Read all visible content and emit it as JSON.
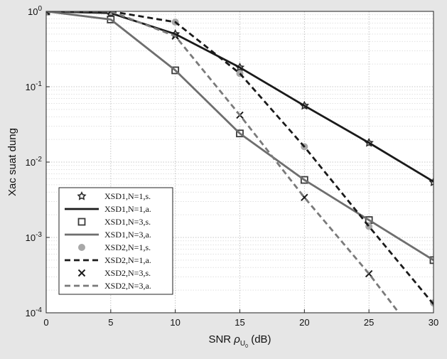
{
  "chart_data": {
    "type": "line",
    "title": "",
    "xlabel": "SNR ρU0 (dB)",
    "xlabel_parts": {
      "prefix": "SNR ",
      "rho": "ρ",
      "sub": "U",
      "subsub": "0",
      "suffix": " (dB)"
    },
    "ylabel": "Xac suat dung",
    "x_scale": "linear",
    "y_scale": "log",
    "xlim": [
      0,
      30
    ],
    "ylim": [
      0.0001,
      1
    ],
    "grid": true,
    "legend_position": "bottom-left",
    "x_ticks": [
      "0",
      "5",
      "10",
      "15",
      "20",
      "25",
      "30"
    ],
    "y_ticks": [
      {
        "value": 1,
        "base": "10",
        "exp": "0"
      },
      {
        "value": 0.1,
        "base": "10",
        "exp": "-1"
      },
      {
        "value": 0.01,
        "base": "10",
        "exp": "-2"
      },
      {
        "value": 0.001,
        "base": "10",
        "exp": "-3"
      },
      {
        "value": 0.0001,
        "base": "10",
        "exp": "-4"
      }
    ],
    "x": [
      0,
      5,
      10,
      15,
      20,
      25,
      30
    ],
    "series": [
      {
        "name": "XSD1,N=1,s.",
        "kind": "marker",
        "marker": "star",
        "color": "#2b2b2b",
        "values": [
          1.0,
          0.95,
          0.5,
          0.18,
          0.056,
          0.018,
          0.0054
        ]
      },
      {
        "name": "XSD1,N=1,a.",
        "kind": "line",
        "dash": "solid",
        "color": "#1a1a1a",
        "values": [
          1.0,
          0.95,
          0.5,
          0.18,
          0.056,
          0.018,
          0.0055
        ]
      },
      {
        "name": "XSD1,N=3,s.",
        "kind": "marker",
        "marker": "square",
        "color": "#3a3a3a",
        "values": [
          1.0,
          0.78,
          0.165,
          0.024,
          0.0058,
          0.0017,
          0.0005
        ]
      },
      {
        "name": "XSD1,N=3,a.",
        "kind": "line",
        "dash": "solid",
        "color": "#6e6e6e",
        "values": [
          1.0,
          0.78,
          0.165,
          0.024,
          0.0058,
          0.0017,
          0.0005
        ]
      },
      {
        "name": "XSD2,N=1,s.",
        "kind": "marker",
        "marker": "dot",
        "color": "#a8a8a8",
        "values": [
          1.0,
          1.0,
          0.72,
          0.15,
          0.016,
          0.0014,
          0.000135
        ]
      },
      {
        "name": "XSD2,N=1,a.",
        "kind": "line",
        "dash": "dashed",
        "color": "#1a1a1a",
        "values": [
          1.0,
          1.0,
          0.72,
          0.15,
          0.016,
          0.0014,
          0.00013
        ]
      },
      {
        "name": "XSD2,N=3,s.",
        "kind": "marker",
        "marker": "x",
        "color": "#1a1a1a",
        "values": [
          1.0,
          1.0,
          0.47,
          0.042,
          0.0034,
          0.00033,
          2.5e-05
        ]
      },
      {
        "name": "XSD2,N=3,a.",
        "kind": "line",
        "dash": "dashed",
        "color": "#7a7a7a",
        "values": [
          1.0,
          1.0,
          0.47,
          0.042,
          0.0034,
          0.00033,
          2.5e-05
        ]
      }
    ]
  }
}
